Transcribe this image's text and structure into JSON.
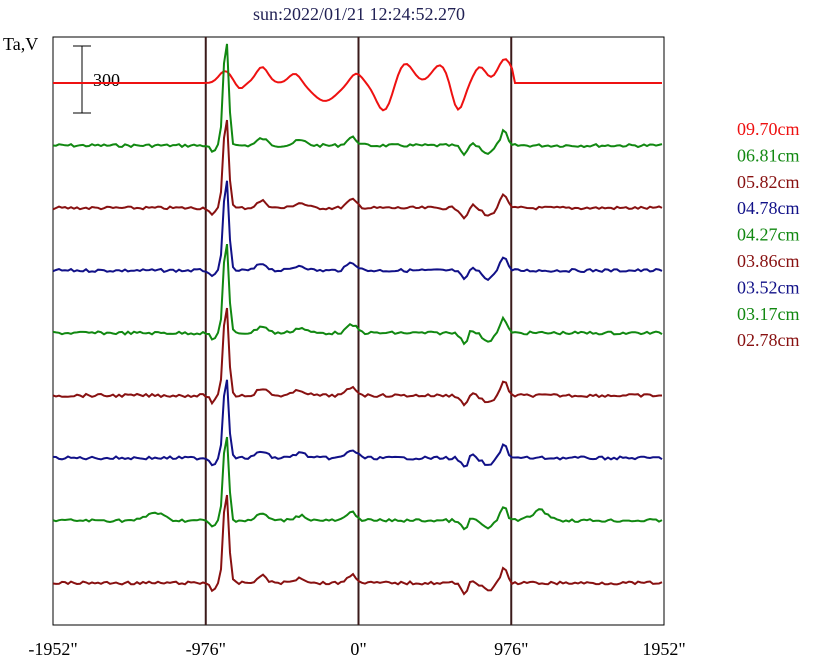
{
  "chart_data": {
    "type": "line",
    "title": "sun:2022/01/21 12:24:52.270",
    "ylabel": "Ta,V",
    "scale_bar_label": "300",
    "x_unit": "arcsec",
    "xlim": [
      -1952,
      1952
    ],
    "xticks": [
      -1952,
      -976,
      0,
      976,
      1952
    ],
    "xtick_labels": [
      "-1952\"",
      "-976\"",
      "0\"",
      "976\"",
      "1952\""
    ],
    "vlines": [
      -976,
      0,
      976
    ],
    "grid": false,
    "legend_position": "right",
    "colors": {
      "red": "#ee1111",
      "green": "#118811",
      "maroon": "#881111",
      "navy": "#111188",
      "axis": "#000000",
      "vline": "#3a1a1a",
      "title": "#222255"
    },
    "series": [
      {
        "name": "09.70cm",
        "color": "#ee1111",
        "kind": "wide"
      },
      {
        "name": "06.81cm",
        "color": "#118811",
        "kind": "peak"
      },
      {
        "name": "05.82cm",
        "color": "#881111",
        "kind": "peak"
      },
      {
        "name": "04.78cm",
        "color": "#111188",
        "kind": "peak"
      },
      {
        "name": "04.27cm",
        "color": "#118811",
        "kind": "peak"
      },
      {
        "name": "03.86cm",
        "color": "#881111",
        "kind": "peak"
      },
      {
        "name": "03.52cm",
        "color": "#111188",
        "kind": "peak"
      },
      {
        "name": "03.17cm",
        "color": "#118811",
        "kind": "peak"
      },
      {
        "name": "02.78cm",
        "color": "#881111",
        "kind": "peak"
      }
    ]
  }
}
